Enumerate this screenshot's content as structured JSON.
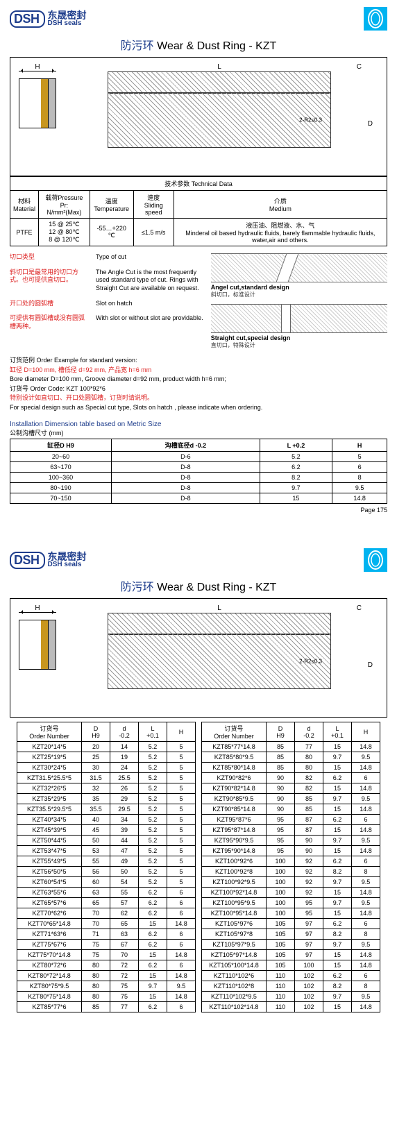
{
  "logo": {
    "cn": "东晟密封",
    "en": "DSH seals",
    "dsh": "DSH"
  },
  "title": {
    "cn": "防污环",
    "en": "Wear & Dust Ring - KZT"
  },
  "diagram": {
    "H": "H",
    "L": "L",
    "C": "C",
    "D": "D",
    "note": "2-R2≤0.3"
  },
  "tech": {
    "hdr": "技术参数 Technical Data",
    "cols": [
      {
        "cn": "材料",
        "en": "Material"
      },
      {
        "cn": "载荷Pressure Pr:",
        "en": "N/mm²(Max)"
      },
      {
        "cn": "温度",
        "en": "Temperature"
      },
      {
        "cn": "速度",
        "en": "Sliding speed"
      },
      {
        "cn": "介质",
        "en": "Medium"
      }
    ],
    "row": {
      "mat": "PTFE",
      "press": "15 @ 25℃\n12 @ 80℃\n8 @ 120℃",
      "temp": "-55…+220 ℃",
      "speed": "≤1.5 m/s",
      "med_cn": "液压油、阻燃液、水、气",
      "med_en": "Minderal oil based hydraulic fluids, barely flammable hydraulic fluids, water,air and others."
    }
  },
  "cut": {
    "h_cn": "切口类型",
    "h_en": "Type of cut",
    "p1_cn": "斜切口是最常用的切口方式。也可提供直切口。",
    "p1_en": "The Angle Cut is the most frequently used standard type of cut. Rings with Straight Cut are available on request.",
    "h2_cn": "开口处的圆弧槽",
    "h2_en": "Slot on hatch",
    "p2_cn": "可提供有圆弧槽或没有圆弧槽两种。",
    "p2_en": "With slot or without slot are providable.",
    "angle_en": "Angel cut,standard design",
    "angle_cn": "斜切口，标准设计",
    "straight_en": "Straight cut,special design",
    "straight_cn": "直切口，特殊设计"
  },
  "order": {
    "t1": "订货范例  Order Example for standard version:",
    "t2_cn": "缸径 D=100 mm, 槽低径 d=92 mm, 产品宽 h=6 mm",
    "t2_en": "Bore diameter D=100 mm, Groove diameter d=92 mm, product width h=6 mm;",
    "t3": "订货号 Order Code:  KZT 100*92*6",
    "t4_cn": "特别设计如直切口、开口处圆弧槽，订货时请说明。",
    "t4_en": "For special design such as Special cut type, Slots on hatch , please indicate when ordering."
  },
  "inst": {
    "hdr": "Installation Dimension table based on Metric Size",
    "sub": "公制沟槽尺寸 (mm)"
  },
  "dimcols": [
    "缸径D  H9",
    "沟槽底径d  -0.2",
    "L  +0.2",
    "H"
  ],
  "dimrows": [
    [
      "20~60",
      "D-6",
      "5.2",
      "5"
    ],
    [
      "63~170",
      "D-8",
      "6.2",
      "6"
    ],
    [
      "100~360",
      "D-8",
      "8.2",
      "8"
    ],
    [
      "80~190",
      "D-8",
      "9.7",
      "9.5"
    ],
    [
      "70~150",
      "D-8",
      "15",
      "14.8"
    ]
  ],
  "page": "Page  175",
  "ordcols": [
    {
      "cn": "订货号",
      "en": "Order Number"
    },
    {
      "cn": "D",
      "en": "H9"
    },
    {
      "cn": "d",
      "en": "-0.2"
    },
    {
      "cn": "L",
      "en": "+0.1"
    },
    {
      "cn": "",
      "en": "H"
    }
  ],
  "ordL": [
    [
      "KZT20*14*5",
      "20",
      "14",
      "5.2",
      "5"
    ],
    [
      "KZT25*19*5",
      "25",
      "19",
      "5.2",
      "5"
    ],
    [
      "KZT30*24*5",
      "30",
      "24",
      "5.2",
      "5"
    ],
    [
      "KZT31.5*25.5*5",
      "31.5",
      "25.5",
      "5.2",
      "5"
    ],
    [
      "KZT32*26*5",
      "32",
      "26",
      "5.2",
      "5"
    ],
    [
      "KZT35*29*5",
      "35",
      "29",
      "5.2",
      "5"
    ],
    [
      "KZT35.5*29.5*5",
      "35.5",
      "29.5",
      "5.2",
      "5"
    ],
    [
      "KZT40*34*5",
      "40",
      "34",
      "5.2",
      "5"
    ],
    [
      "KZT45*39*5",
      "45",
      "39",
      "5.2",
      "5"
    ],
    [
      "KZT50*44*5",
      "50",
      "44",
      "5.2",
      "5"
    ],
    [
      "KZT53*47*5",
      "53",
      "47",
      "5.2",
      "5"
    ],
    [
      "KZT55*49*5",
      "55",
      "49",
      "5.2",
      "5"
    ],
    [
      "KZT56*50*5",
      "56",
      "50",
      "5.2",
      "5"
    ],
    [
      "KZT60*54*5",
      "60",
      "54",
      "5.2",
      "5"
    ],
    [
      "KZT63*55*6",
      "63",
      "55",
      "6.2",
      "6"
    ],
    [
      "KZT65*57*6",
      "65",
      "57",
      "6.2",
      "6"
    ],
    [
      "KZT70*62*6",
      "70",
      "62",
      "6.2",
      "6"
    ],
    [
      "KZT70*65*14.8",
      "70",
      "65",
      "15",
      "14.8"
    ],
    [
      "KZT71*63*6",
      "71",
      "63",
      "6.2",
      "6"
    ],
    [
      "KZT75*67*6",
      "75",
      "67",
      "6.2",
      "6"
    ],
    [
      "KZT75*70*14.8",
      "75",
      "70",
      "15",
      "14.8"
    ],
    [
      "KZT80*72*6",
      "80",
      "72",
      "6.2",
      "6"
    ],
    [
      "KZT80*72*14.8",
      "80",
      "72",
      "15",
      "14.8"
    ],
    [
      "KZT80*75*9.5",
      "80",
      "75",
      "9.7",
      "9.5"
    ],
    [
      "KZT80*75*14.8",
      "80",
      "75",
      "15",
      "14.8"
    ],
    [
      "KZT85*77*6",
      "85",
      "77",
      "6.2",
      "6"
    ]
  ],
  "ordR": [
    [
      "KZT85*77*14.8",
      "85",
      "77",
      "15",
      "14.8"
    ],
    [
      "KZT85*80*9.5",
      "85",
      "80",
      "9.7",
      "9.5"
    ],
    [
      "KZT85*80*14.8",
      "85",
      "80",
      "15",
      "14.8"
    ],
    [
      "KZT90*82*6",
      "90",
      "82",
      "6.2",
      "6"
    ],
    [
      "KZT90*82*14.8",
      "90",
      "82",
      "15",
      "14.8"
    ],
    [
      "KZT90*85*9.5",
      "90",
      "85",
      "9.7",
      "9.5"
    ],
    [
      "KZT90*85*14.8",
      "90",
      "85",
      "15",
      "14.8"
    ],
    [
      "KZT95*87*6",
      "95",
      "87",
      "6.2",
      "6"
    ],
    [
      "KZT95*87*14.8",
      "95",
      "87",
      "15",
      "14.8"
    ],
    [
      "KZT95*90*9.5",
      "95",
      "90",
      "9.7",
      "9.5"
    ],
    [
      "KZT95*90*14.8",
      "95",
      "90",
      "15",
      "14.8"
    ],
    [
      "KZT100*92*6",
      "100",
      "92",
      "6.2",
      "6"
    ],
    [
      "KZT100*92*8",
      "100",
      "92",
      "8.2",
      "8"
    ],
    [
      "KZT100*92*9.5",
      "100",
      "92",
      "9.7",
      "9.5"
    ],
    [
      "KZT100*92*14.8",
      "100",
      "92",
      "15",
      "14.8"
    ],
    [
      "KZT100*95*9.5",
      "100",
      "95",
      "9.7",
      "9.5"
    ],
    [
      "KZT100*95*14.8",
      "100",
      "95",
      "15",
      "14.8"
    ],
    [
      "KZT105*97*6",
      "105",
      "97",
      "6.2",
      "6"
    ],
    [
      "KZT105*97*8",
      "105",
      "97",
      "8.2",
      "8"
    ],
    [
      "KZT105*97*9.5",
      "105",
      "97",
      "9.7",
      "9.5"
    ],
    [
      "KZT105*97*14.8",
      "105",
      "97",
      "15",
      "14.8"
    ],
    [
      "KZT105*100*14.8",
      "105",
      "100",
      "15",
      "14.8"
    ],
    [
      "KZT110*102*6",
      "110",
      "102",
      "6.2",
      "6"
    ],
    [
      "KZT110*102*8",
      "110",
      "102",
      "8.2",
      "8"
    ],
    [
      "KZT110*102*9.5",
      "110",
      "102",
      "9.7",
      "9.5"
    ],
    [
      "KZT110*102*14.8",
      "110",
      "102",
      "15",
      "14.8"
    ]
  ]
}
